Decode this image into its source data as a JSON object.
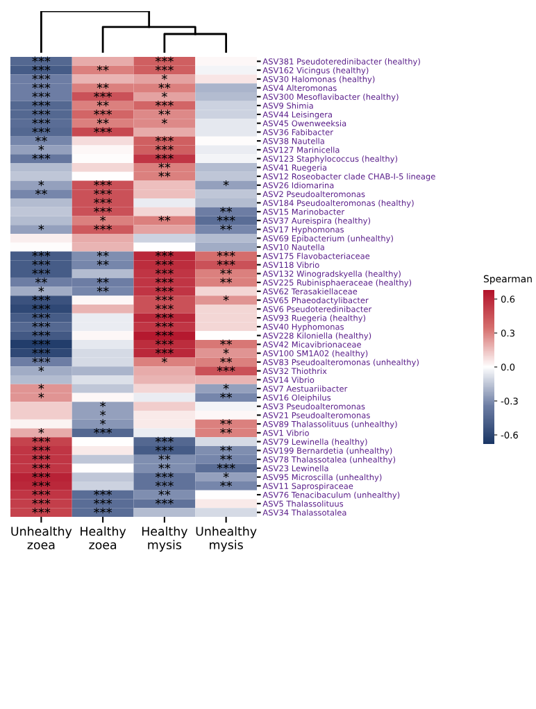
{
  "chart_data": {
    "type": "heatmap",
    "clabel": "Spearman",
    "categories": [
      "Unhealthy\nzoea",
      "Healthy\nzoea",
      "Healthy\nmysis",
      "Unhealthy\nmysis"
    ],
    "y_categories": [
      "ASV381 Pseudoteredinibacter (healthy)",
      "ASV162 Vicingus (healthy)",
      "ASV30 Halomonas (healthy)",
      "ASV4 Alteromonas",
      "ASV300 Mesoflavibacter (healthy)",
      "ASV9 Shimia",
      "ASV44 Leisingera",
      "ASV45 Owenweeksia",
      "ASV36 Fabibacter",
      "ASV38 Nautella",
      "ASV127 Marinicella",
      "ASV123 Staphylococcus (healthy)",
      "ASV41 Ruegeria",
      "ASV12 Roseobacter clade CHAB-I-5 lineage",
      "ASV26 Idiomarina",
      "ASV2 Pseudoalteromonas",
      "ASV184 Pseudoalteromonas (healthy)",
      "ASV15 Marinobacter",
      "ASV37 Aureispira (healthy)",
      "ASV17 Hyphomonas",
      "ASV69 Epibacterium (unhealthy)",
      "ASV10 Nautella",
      "ASV175 Flavobacteriaceae",
      "ASV118 Vibrio",
      "ASV132 Winogradskyella (healthy)",
      "ASV225 Rubinisphaeraceae (healthy)",
      "ASV62 Terasakiellaceae",
      "ASV65 Phaeodactylibacter",
      "ASV6 Pseudoteredinibacter",
      "ASV93 Ruegeria (healthy)",
      "ASV40 Hyphomonas",
      "ASV228 Kiloniella (healthy)",
      "ASV42 Micavibrionaceae",
      "ASV100 SM1A02 (healthy)",
      "ASV83 Pseudoalteromonas (unhealthy)",
      "ASV32 Thiothrix",
      "ASV14 Vibrio",
      "ASV7 Aestuariibacter",
      "ASV16 Oleiphilus",
      "ASV3 Pseudoalteromonas",
      "ASV21 Pseudoalteromonas",
      "ASV89 Thalassolituus (unhealthy)",
      "ASV1 Vibrio",
      "ASV79 Lewinella (healthy)",
      "ASV199 Bernardetia (unhealthy)",
      "ASV78 Thalassotalea (unhealthy)",
      "ASV23 Lewinella",
      "ASV95 Microscilla (unhealthy)",
      "ASV11 Saprospiraceae",
      "ASV76 Tenacibaculum (unhealthy)",
      "ASV5 Thalassolituus",
      "ASV34 Thalassotalea"
    ],
    "cells": [
      [
        -0.45,
        0.2,
        0.4,
        0.02
      ],
      [
        -0.5,
        0.3,
        0.4,
        -0.03
      ],
      [
        -0.35,
        0.18,
        0.22,
        0.06
      ],
      [
        -0.35,
        0.3,
        0.3,
        -0.2
      ],
      [
        -0.35,
        0.45,
        0.22,
        -0.18
      ],
      [
        -0.45,
        0.3,
        0.38,
        -0.12
      ],
      [
        -0.45,
        0.38,
        0.28,
        -0.12
      ],
      [
        -0.42,
        0.3,
        0.28,
        -0.06
      ],
      [
        -0.45,
        0.48,
        0.2,
        -0.06
      ],
      [
        -0.32,
        0.08,
        0.4,
        0.01
      ],
      [
        -0.25,
        0.02,
        0.4,
        -0.05
      ],
      [
        -0.38,
        0.01,
        0.55,
        -0.03
      ],
      [
        -0.18,
        0.1,
        0.3,
        -0.18
      ],
      [
        -0.15,
        0.0,
        0.3,
        -0.15
      ],
      [
        -0.25,
        0.45,
        0.15,
        -0.25
      ],
      [
        -0.32,
        0.45,
        0.15,
        -0.15
      ],
      [
        -0.18,
        0.45,
        -0.05,
        -0.18
      ],
      [
        -0.15,
        0.45,
        0.1,
        -0.35
      ],
      [
        -0.18,
        0.3,
        0.3,
        -0.42
      ],
      [
        -0.25,
        0.42,
        0.22,
        -0.32
      ],
      [
        0.04,
        0.2,
        -0.12,
        -0.18
      ],
      [
        0.01,
        0.18,
        0.0,
        -0.22
      ],
      [
        -0.5,
        -0.3,
        0.6,
        0.35
      ],
      [
        -0.5,
        -0.32,
        0.58,
        0.45
      ],
      [
        -0.5,
        -0.18,
        0.55,
        0.3
      ],
      [
        -0.35,
        -0.35,
        0.55,
        0.3
      ],
      [
        -0.22,
        -0.32,
        0.55,
        0.1
      ],
      [
        -0.55,
        0.02,
        0.45,
        0.25
      ],
      [
        -0.6,
        0.18,
        0.45,
        0.1
      ],
      [
        -0.5,
        -0.05,
        0.6,
        0.1
      ],
      [
        -0.45,
        -0.05,
        0.55,
        0.1
      ],
      [
        -0.52,
        0.02,
        0.65,
        0.0
      ],
      [
        -0.65,
        -0.06,
        0.58,
        0.32
      ],
      [
        -0.6,
        -0.1,
        0.6,
        0.25
      ],
      [
        -0.35,
        -0.1,
        0.3,
        0.3
      ],
      [
        -0.22,
        -0.2,
        0.2,
        0.45
      ],
      [
        -0.18,
        -0.08,
        0.18,
        0.18
      ],
      [
        0.25,
        -0.15,
        0.1,
        -0.25
      ],
      [
        0.25,
        0.02,
        -0.05,
        -0.32
      ],
      [
        0.12,
        -0.25,
        0.12,
        -0.03
      ],
      [
        0.12,
        -0.25,
        0.05,
        0.02
      ],
      [
        0.03,
        -0.28,
        0.05,
        0.3
      ],
      [
        0.2,
        -0.45,
        -0.05,
        0.3
      ],
      [
        0.5,
        0.0,
        -0.45,
        -0.1
      ],
      [
        0.55,
        0.05,
        -0.5,
        -0.3
      ],
      [
        0.55,
        -0.15,
        -0.3,
        -0.32
      ],
      [
        0.55,
        0.0,
        -0.3,
        -0.42
      ],
      [
        0.62,
        -0.15,
        -0.4,
        -0.25
      ],
      [
        0.6,
        -0.12,
        -0.4,
        -0.32
      ],
      [
        0.55,
        -0.42,
        -0.3,
        0.0
      ],
      [
        0.52,
        -0.42,
        -0.4,
        0.05
      ],
      [
        0.5,
        -0.42,
        -0.18,
        -0.1
      ]
    ],
    "cell_labels": [
      [
        "***",
        null,
        "***",
        null
      ],
      [
        "***",
        "**",
        "***",
        null
      ],
      [
        "***",
        null,
        "*",
        null
      ],
      [
        "***",
        "**",
        "**",
        null
      ],
      [
        "***",
        "***",
        "*",
        null
      ],
      [
        "***",
        "**",
        "***",
        null
      ],
      [
        "***",
        "***",
        "**",
        null
      ],
      [
        "***",
        "**",
        "*",
        null
      ],
      [
        "***",
        "***",
        null,
        null
      ],
      [
        "**",
        null,
        "***",
        null
      ],
      [
        "*",
        null,
        "***",
        null
      ],
      [
        "***",
        null,
        "***",
        null
      ],
      [
        null,
        null,
        "**",
        null
      ],
      [
        null,
        null,
        "**",
        null
      ],
      [
        "*",
        "***",
        null,
        "*"
      ],
      [
        "**",
        "***",
        null,
        null
      ],
      [
        null,
        "***",
        null,
        null
      ],
      [
        null,
        "***",
        null,
        "**"
      ],
      [
        null,
        "*",
        "**",
        "***"
      ],
      [
        "*",
        "***",
        null,
        "**"
      ],
      [
        null,
        null,
        null,
        null
      ],
      [
        null,
        null,
        null,
        null
      ],
      [
        "***",
        "**",
        "***",
        "***"
      ],
      [
        "***",
        "**",
        "***",
        "***"
      ],
      [
        "***",
        null,
        "***",
        "**"
      ],
      [
        "**",
        "**",
        "***",
        "**"
      ],
      [
        "*",
        "**",
        "***",
        null
      ],
      [
        "***",
        null,
        "***",
        "*"
      ],
      [
        "***",
        null,
        "***",
        null
      ],
      [
        "***",
        null,
        "***",
        null
      ],
      [
        "***",
        null,
        "***",
        null
      ],
      [
        "***",
        null,
        "***",
        null
      ],
      [
        "***",
        null,
        "***",
        "**"
      ],
      [
        "***",
        null,
        "***",
        "*"
      ],
      [
        "***",
        null,
        "*",
        "**"
      ],
      [
        "*",
        null,
        null,
        "***"
      ],
      [
        null,
        null,
        null,
        null
      ],
      [
        "*",
        null,
        null,
        "*"
      ],
      [
        "*",
        null,
        null,
        "**"
      ],
      [
        null,
        "*",
        null,
        null
      ],
      [
        null,
        "*",
        null,
        null
      ],
      [
        null,
        "*",
        null,
        "**"
      ],
      [
        "*",
        "***",
        null,
        "**"
      ],
      [
        "***",
        null,
        "***",
        null
      ],
      [
        "***",
        null,
        "***",
        "**"
      ],
      [
        "***",
        null,
        "**",
        "**"
      ],
      [
        "***",
        null,
        "**",
        "***"
      ],
      [
        "***",
        null,
        "***",
        "*"
      ],
      [
        "***",
        null,
        "***",
        "**"
      ],
      [
        "***",
        "***",
        "**",
        null
      ],
      [
        "***",
        "***",
        "***",
        null
      ],
      [
        "***",
        "***",
        null,
        null
      ]
    ],
    "clim": [
      -0.68,
      0.68
    ],
    "cticks": [
      {
        "value": 0.6,
        "label": "0.6"
      },
      {
        "value": 0.3,
        "label": "0.3"
      },
      {
        "value": 0,
        "label": "0.0"
      },
      {
        "value": -0.3,
        "label": "-0.3"
      },
      {
        "value": -0.6,
        "label": "-0.6"
      }
    ]
  }
}
